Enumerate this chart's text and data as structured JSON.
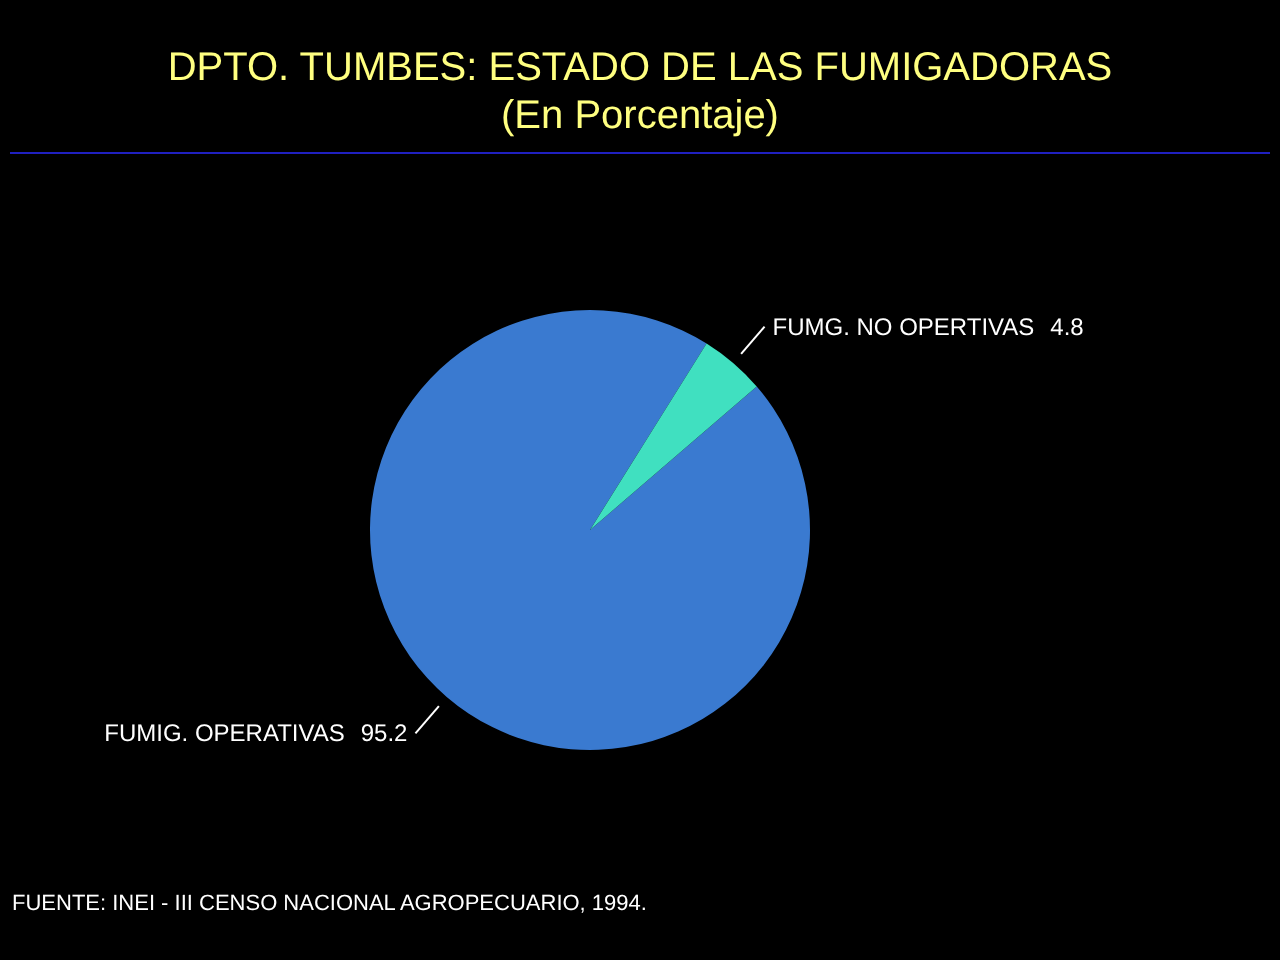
{
  "chart_data": {
    "type": "pie",
    "title": "DPTO. TUMBES: ESTADO DE LAS FUMIGADORAS",
    "subtitle": "(En Porcentaje)",
    "categories": [
      "FUMIG. OPERATIVAS",
      "FUMG. NO OPERTIVAS"
    ],
    "values": [
      95.2,
      4.8
    ],
    "colors": [
      "#3a7ad0",
      "#40e0c0"
    ],
    "data_labels": true,
    "annotations": [
      "FUENTE: INEI - III CENSO NACIONAL AGROPECUARIO, 1994."
    ]
  }
}
